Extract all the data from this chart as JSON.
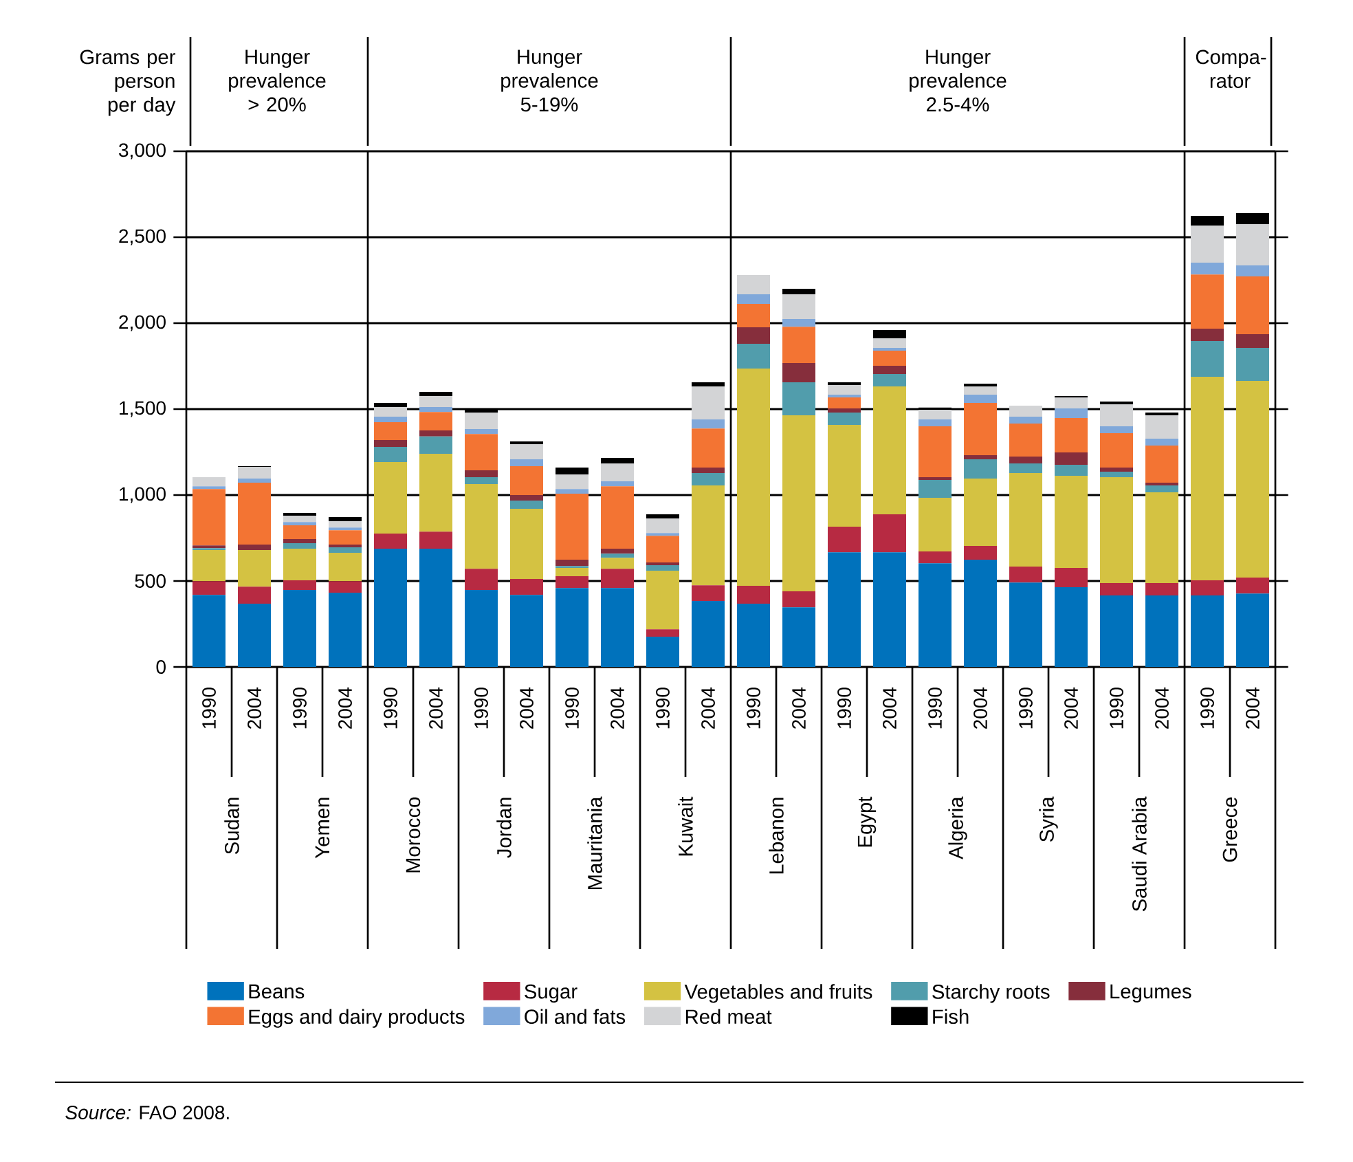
{
  "chart_data": {
    "type": "bar",
    "stacked": true,
    "ylabel": "Grams per person per day",
    "categories": [
      "1990",
      "2004",
      "1990",
      "2004",
      "1990",
      "2004",
      "1990",
      "2004",
      "1990",
      "2004",
      "1990",
      "2004",
      "1990",
      "2004",
      "1990",
      "2004",
      "1990",
      "2004",
      "1990",
      "2004",
      "1990",
      "2004",
      "1990",
      "2004"
    ],
    "series": [
      {
        "name": "Beans",
        "color": "#0072bc",
        "values": [
          419,
          368,
          448,
          432,
          688,
          688,
          448,
          419,
          459,
          459,
          176,
          384,
          368,
          347,
          667,
          667,
          603,
          624,
          491,
          464,
          416,
          416,
          416,
          427
        ]
      },
      {
        "name": "Sugar",
        "color": "#b72a42",
        "values": [
          80,
          99,
          56,
          67,
          88,
          99,
          123,
          93,
          69,
          112,
          43,
          91,
          104,
          93,
          149,
          221,
          69,
          80,
          93,
          112,
          72,
          72,
          88,
          93
        ]
      },
      {
        "name": "Vegetables and fruits",
        "color": "#d4c242",
        "values": [
          181,
          213,
          184,
          165,
          416,
          453,
          493,
          408,
          48,
          64,
          341,
          581,
          1264,
          1024,
          592,
          744,
          312,
          392,
          544,
          536,
          616,
          528,
          1184,
          1144
        ]
      },
      {
        "name": "Starchy roots",
        "color": "#519dac",
        "values": [
          11,
          0,
          32,
          32,
          88,
          101,
          40,
          48,
          11,
          24,
          32,
          72,
          144,
          192,
          72,
          72,
          104,
          112,
          56,
          64,
          32,
          40,
          208,
          192
        ]
      },
      {
        "name": "Legumes",
        "color": "#862e3c",
        "values": [
          16,
          32,
          24,
          16,
          40,
          35,
          40,
          32,
          37,
          29,
          16,
          32,
          96,
          112,
          24,
          48,
          16,
          24,
          40,
          72,
          24,
          16,
          72,
          80
        ]
      },
      {
        "name": "Eggs and dairy products",
        "color": "#f37433",
        "values": [
          328,
          360,
          80,
          83,
          104,
          107,
          211,
          168,
          384,
          363,
          155,
          227,
          136,
          211,
          64,
          88,
          296,
          304,
          192,
          200,
          200,
          216,
          315,
          336
        ]
      },
      {
        "name": "Oil and fats",
        "color": "#80a8da",
        "values": [
          16,
          24,
          19,
          16,
          32,
          29,
          29,
          40,
          27,
          29,
          16,
          53,
          56,
          45,
          16,
          16,
          40,
          48,
          40,
          56,
          40,
          40,
          69,
          64
        ]
      },
      {
        "name": "Red meat",
        "color": "#d3d4d6",
        "values": [
          53,
          67,
          37,
          37,
          56,
          64,
          96,
          88,
          85,
          104,
          85,
          192,
          112,
          144,
          56,
          56,
          56,
          48,
          64,
          64,
          128,
          136,
          216,
          240
        ]
      },
      {
        "name": "Fish",
        "color": "#000000",
        "values": [
          0,
          5,
          16,
          24,
          24,
          24,
          19,
          16,
          40,
          32,
          24,
          24,
          0,
          32,
          16,
          48,
          13,
          16,
          0,
          8,
          16,
          16,
          56,
          64
        ]
      }
    ],
    "ylim": [
      0,
      3000
    ],
    "yticks": [
      0,
      500,
      {
        "value": 1000,
        "label": "1,000"
      },
      {
        "value": 1500,
        "label": "1,500"
      },
      {
        "value": 2000,
        "label": "2,000"
      },
      {
        "value": 2500,
        "label": "2,500"
      },
      {
        "value": 3000,
        "label": "3,000"
      }
    ],
    "grid": "y",
    "legend": "bottom",
    "annotations": [
      "Hunger prevalence > 20%",
      "Hunger prevalence 5-19%",
      "Hunger prevalence 2.5-4%",
      "Compa-rator",
      "Sudan",
      "Yemen",
      "Morocco",
      "Jordan",
      "Mauritania",
      "Kuwait",
      "Lebanon",
      "Egypt",
      "Algeria",
      "Syria",
      "Saudi Arabia",
      "Greece",
      "*Source:* FAO 2008."
    ]
  }
}
